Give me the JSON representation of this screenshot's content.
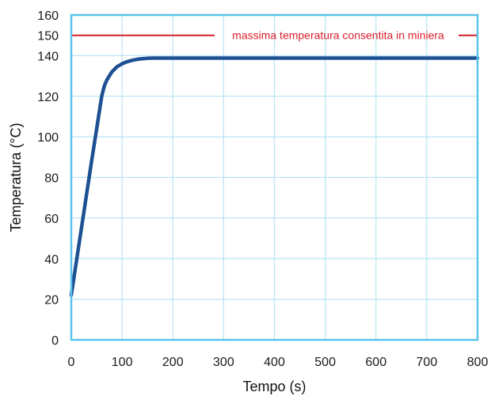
{
  "chart_data": {
    "type": "line",
    "xlabel": "Tempo (s)",
    "ylabel": "Temperatura (°C)",
    "xlim": [
      0,
      800
    ],
    "ylim": [
      0,
      160
    ],
    "x_ticks": [
      "0",
      "100",
      "200",
      "300",
      "400",
      "500",
      "600",
      "700",
      "800"
    ],
    "y_ticks": [
      "0",
      "20",
      "40",
      "60",
      "80",
      "100",
      "120",
      "140",
      "160"
    ],
    "grid": true,
    "series": [
      {
        "x": [
          0,
          20,
          40,
          60,
          65,
          70,
          80,
          90,
          100,
          110,
          120,
          130,
          140,
          150,
          160,
          200,
          300,
          400,
          500,
          600,
          700,
          800
        ],
        "y": [
          22,
          55,
          88,
          120,
          125,
          128,
          132,
          134.5,
          136,
          137,
          137.7,
          138.2,
          138.5,
          138.7,
          138.8,
          138.8,
          138.8,
          138.8,
          138.8,
          138.8,
          138.8,
          138.8
        ]
      }
    ],
    "reference_line": {
      "y": 150,
      "label": "150",
      "text": "massima temperatura consentita in miniera"
    }
  },
  "colors": {
    "series_line": "#1d5092",
    "reference": "#d71f2c",
    "grid": "#b9e4f3",
    "frame": "#58c5ea",
    "text": "#1a1a1a"
  }
}
